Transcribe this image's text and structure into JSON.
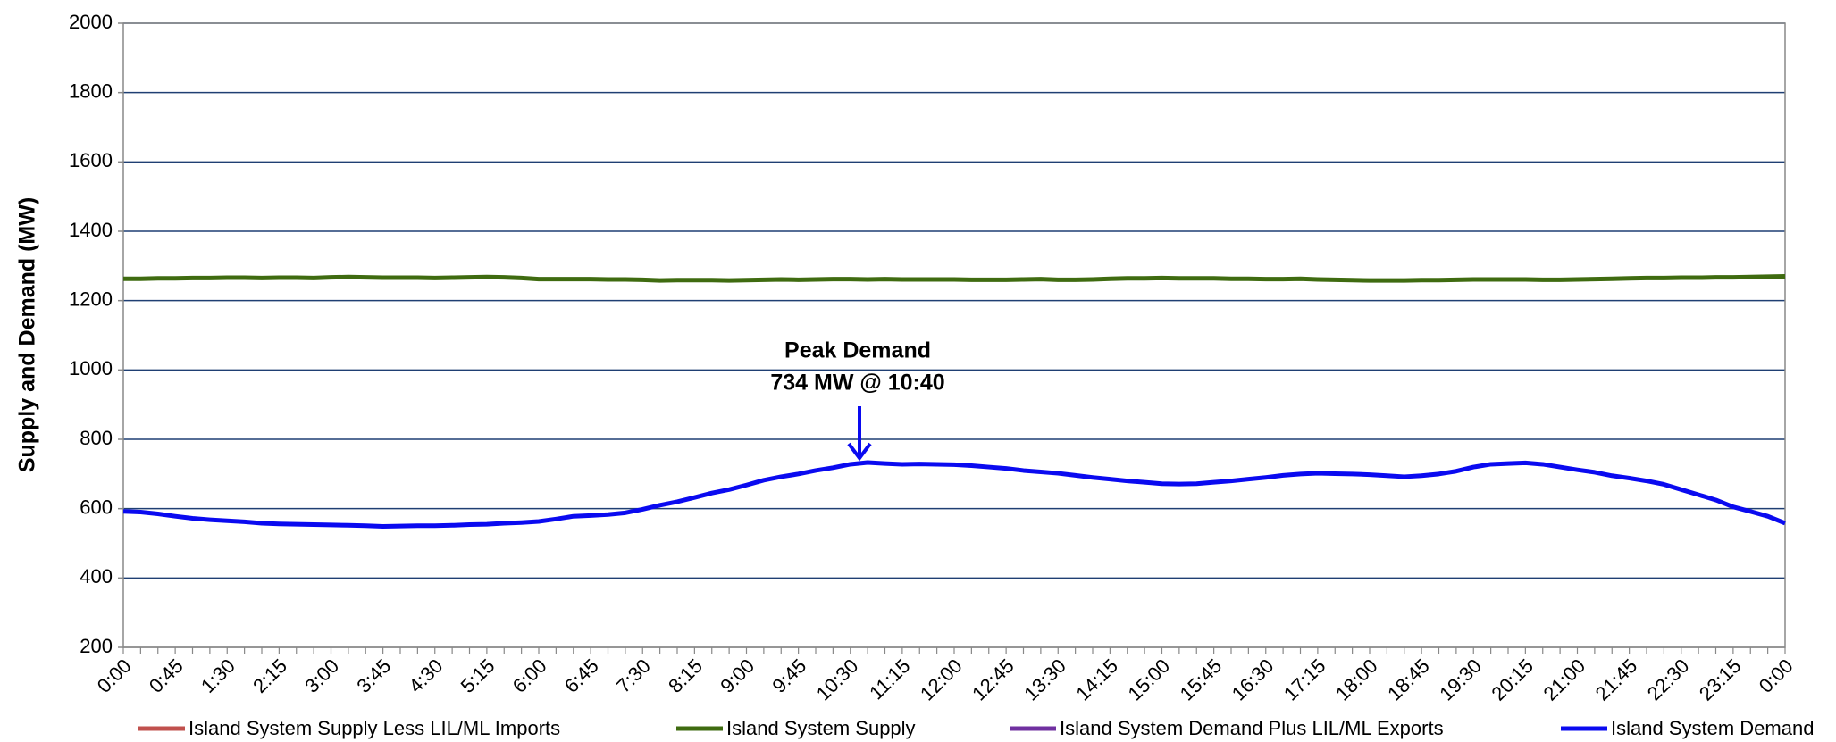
{
  "chart_data": {
    "type": "line",
    "y_label": "Supply and Demand (MW)",
    "annotations": [
      "Peak Demand",
      "734 MW @ 10:40"
    ],
    "ylim": [
      200,
      2000
    ],
    "yticks": [
      200,
      400,
      600,
      800,
      1000,
      1200,
      1400,
      1600,
      1800,
      2000
    ],
    "grid": true,
    "categories": [
      "0:00",
      null,
      null,
      "0:45",
      null,
      null,
      "1:30",
      null,
      null,
      "2:15",
      null,
      null,
      "3:00",
      null,
      null,
      "3:45",
      null,
      null,
      "4:30",
      null,
      null,
      "5:15",
      null,
      null,
      "6:00",
      null,
      null,
      "6:45",
      null,
      null,
      "7:30",
      null,
      null,
      "8:15",
      null,
      null,
      "9:00",
      null,
      null,
      "9:45",
      null,
      null,
      "10:30",
      null,
      null,
      "11:15",
      null,
      null,
      "12:00",
      null,
      null,
      "12:45",
      null,
      null,
      "13:30",
      null,
      null,
      "14:15",
      null,
      null,
      "15:00",
      null,
      null,
      "15:45",
      null,
      null,
      "16:30",
      null,
      null,
      "17:15",
      null,
      null,
      "18:00",
      null,
      null,
      "18:45",
      null,
      null,
      "19:30",
      null,
      null,
      "20:15",
      null,
      null,
      "21:00",
      null,
      null,
      "21:45",
      null,
      null,
      "22:30",
      null,
      null,
      "23:15",
      null,
      null,
      "0:00"
    ],
    "series": [
      {
        "name": "Island System Supply Less LIL/ML Imports",
        "color": "#c0504d",
        "values": [
          null,
          null,
          null,
          null,
          null,
          null,
          null,
          null,
          null,
          null,
          null,
          null,
          null,
          null,
          null,
          null,
          null,
          null,
          null,
          null,
          null,
          null,
          null,
          null,
          null,
          null,
          null,
          null,
          null,
          null,
          null,
          null,
          null,
          null,
          null,
          null,
          null,
          null,
          null,
          null,
          null,
          null,
          null,
          null,
          null,
          null,
          null,
          null,
          null,
          null,
          null,
          null,
          null,
          null,
          null,
          null,
          null,
          null,
          null,
          null,
          null,
          null,
          null,
          null,
          null,
          null,
          null,
          null,
          null,
          null,
          null,
          null,
          null,
          null,
          null,
          null,
          null,
          null,
          null,
          null,
          null,
          null,
          null,
          null,
          null,
          null,
          null,
          null,
          null,
          null,
          null,
          null,
          null,
          null,
          null,
          null,
          null
        ]
      },
      {
        "name": "Island System Supply",
        "color": "#3f6b10",
        "values": [
          1263,
          1263,
          1264,
          1264,
          1265,
          1265,
          1266,
          1266,
          1265,
          1266,
          1266,
          1265,
          1267,
          1268,
          1267,
          1266,
          1266,
          1266,
          1265,
          1266,
          1267,
          1268,
          1267,
          1265,
          1262,
          1262,
          1262,
          1262,
          1261,
          1261,
          1260,
          1258,
          1259,
          1259,
          1259,
          1258,
          1259,
          1260,
          1261,
          1260,
          1261,
          1262,
          1262,
          1261,
          1262,
          1261,
          1261,
          1261,
          1261,
          1260,
          1260,
          1260,
          1261,
          1262,
          1260,
          1260,
          1261,
          1263,
          1264,
          1264,
          1265,
          1264,
          1264,
          1264,
          1263,
          1263,
          1262,
          1262,
          1263,
          1261,
          1260,
          1259,
          1258,
          1258,
          1258,
          1259,
          1259,
          1260,
          1261,
          1261,
          1261,
          1261,
          1260,
          1260,
          1261,
          1262,
          1263,
          1264,
          1265,
          1265,
          1266,
          1266,
          1267,
          1267,
          1268,
          1269,
          1270
        ]
      },
      {
        "name": "Island System Demand Plus LIL/ML Exports",
        "color": "#7030a0",
        "values": [
          null,
          null,
          null,
          null,
          null,
          null,
          null,
          null,
          null,
          null,
          null,
          null,
          null,
          null,
          null,
          null,
          null,
          null,
          null,
          null,
          null,
          null,
          null,
          null,
          null,
          null,
          null,
          null,
          null,
          null,
          null,
          null,
          null,
          null,
          null,
          null,
          null,
          null,
          null,
          null,
          null,
          null,
          null,
          null,
          null,
          null,
          null,
          null,
          null,
          null,
          null,
          null,
          null,
          null,
          null,
          null,
          null,
          null,
          null,
          null,
          null,
          null,
          null,
          null,
          null,
          null,
          null,
          null,
          null,
          null,
          null,
          null,
          null,
          null,
          null,
          null,
          null,
          null,
          null,
          null,
          null,
          null,
          null,
          null,
          null,
          null,
          null,
          null,
          null,
          null,
          null,
          null,
          null,
          null,
          null,
          null,
          null
        ]
      },
      {
        "name": "Island System Demand",
        "color": "#0a0af0",
        "values": [
          592,
          590,
          585,
          578,
          572,
          568,
          565,
          562,
          558,
          556,
          555,
          554,
          553,
          552,
          551,
          549,
          550,
          551,
          551,
          552,
          554,
          555,
          558,
          560,
          563,
          570,
          578,
          580,
          583,
          588,
          598,
          610,
          620,
          632,
          645,
          655,
          668,
          682,
          692,
          700,
          710,
          718,
          728,
          733,
          730,
          728,
          729,
          728,
          727,
          724,
          720,
          716,
          710,
          706,
          702,
          696,
          690,
          685,
          680,
          676,
          672,
          671,
          672,
          676,
          680,
          685,
          690,
          696,
          700,
          702,
          701,
          700,
          698,
          695,
          692,
          695,
          700,
          708,
          720,
          728,
          730,
          732,
          728,
          720,
          712,
          705,
          695,
          688,
          680,
          670,
          655,
          640,
          625,
          605,
          592,
          578,
          558
        ]
      }
    ]
  }
}
